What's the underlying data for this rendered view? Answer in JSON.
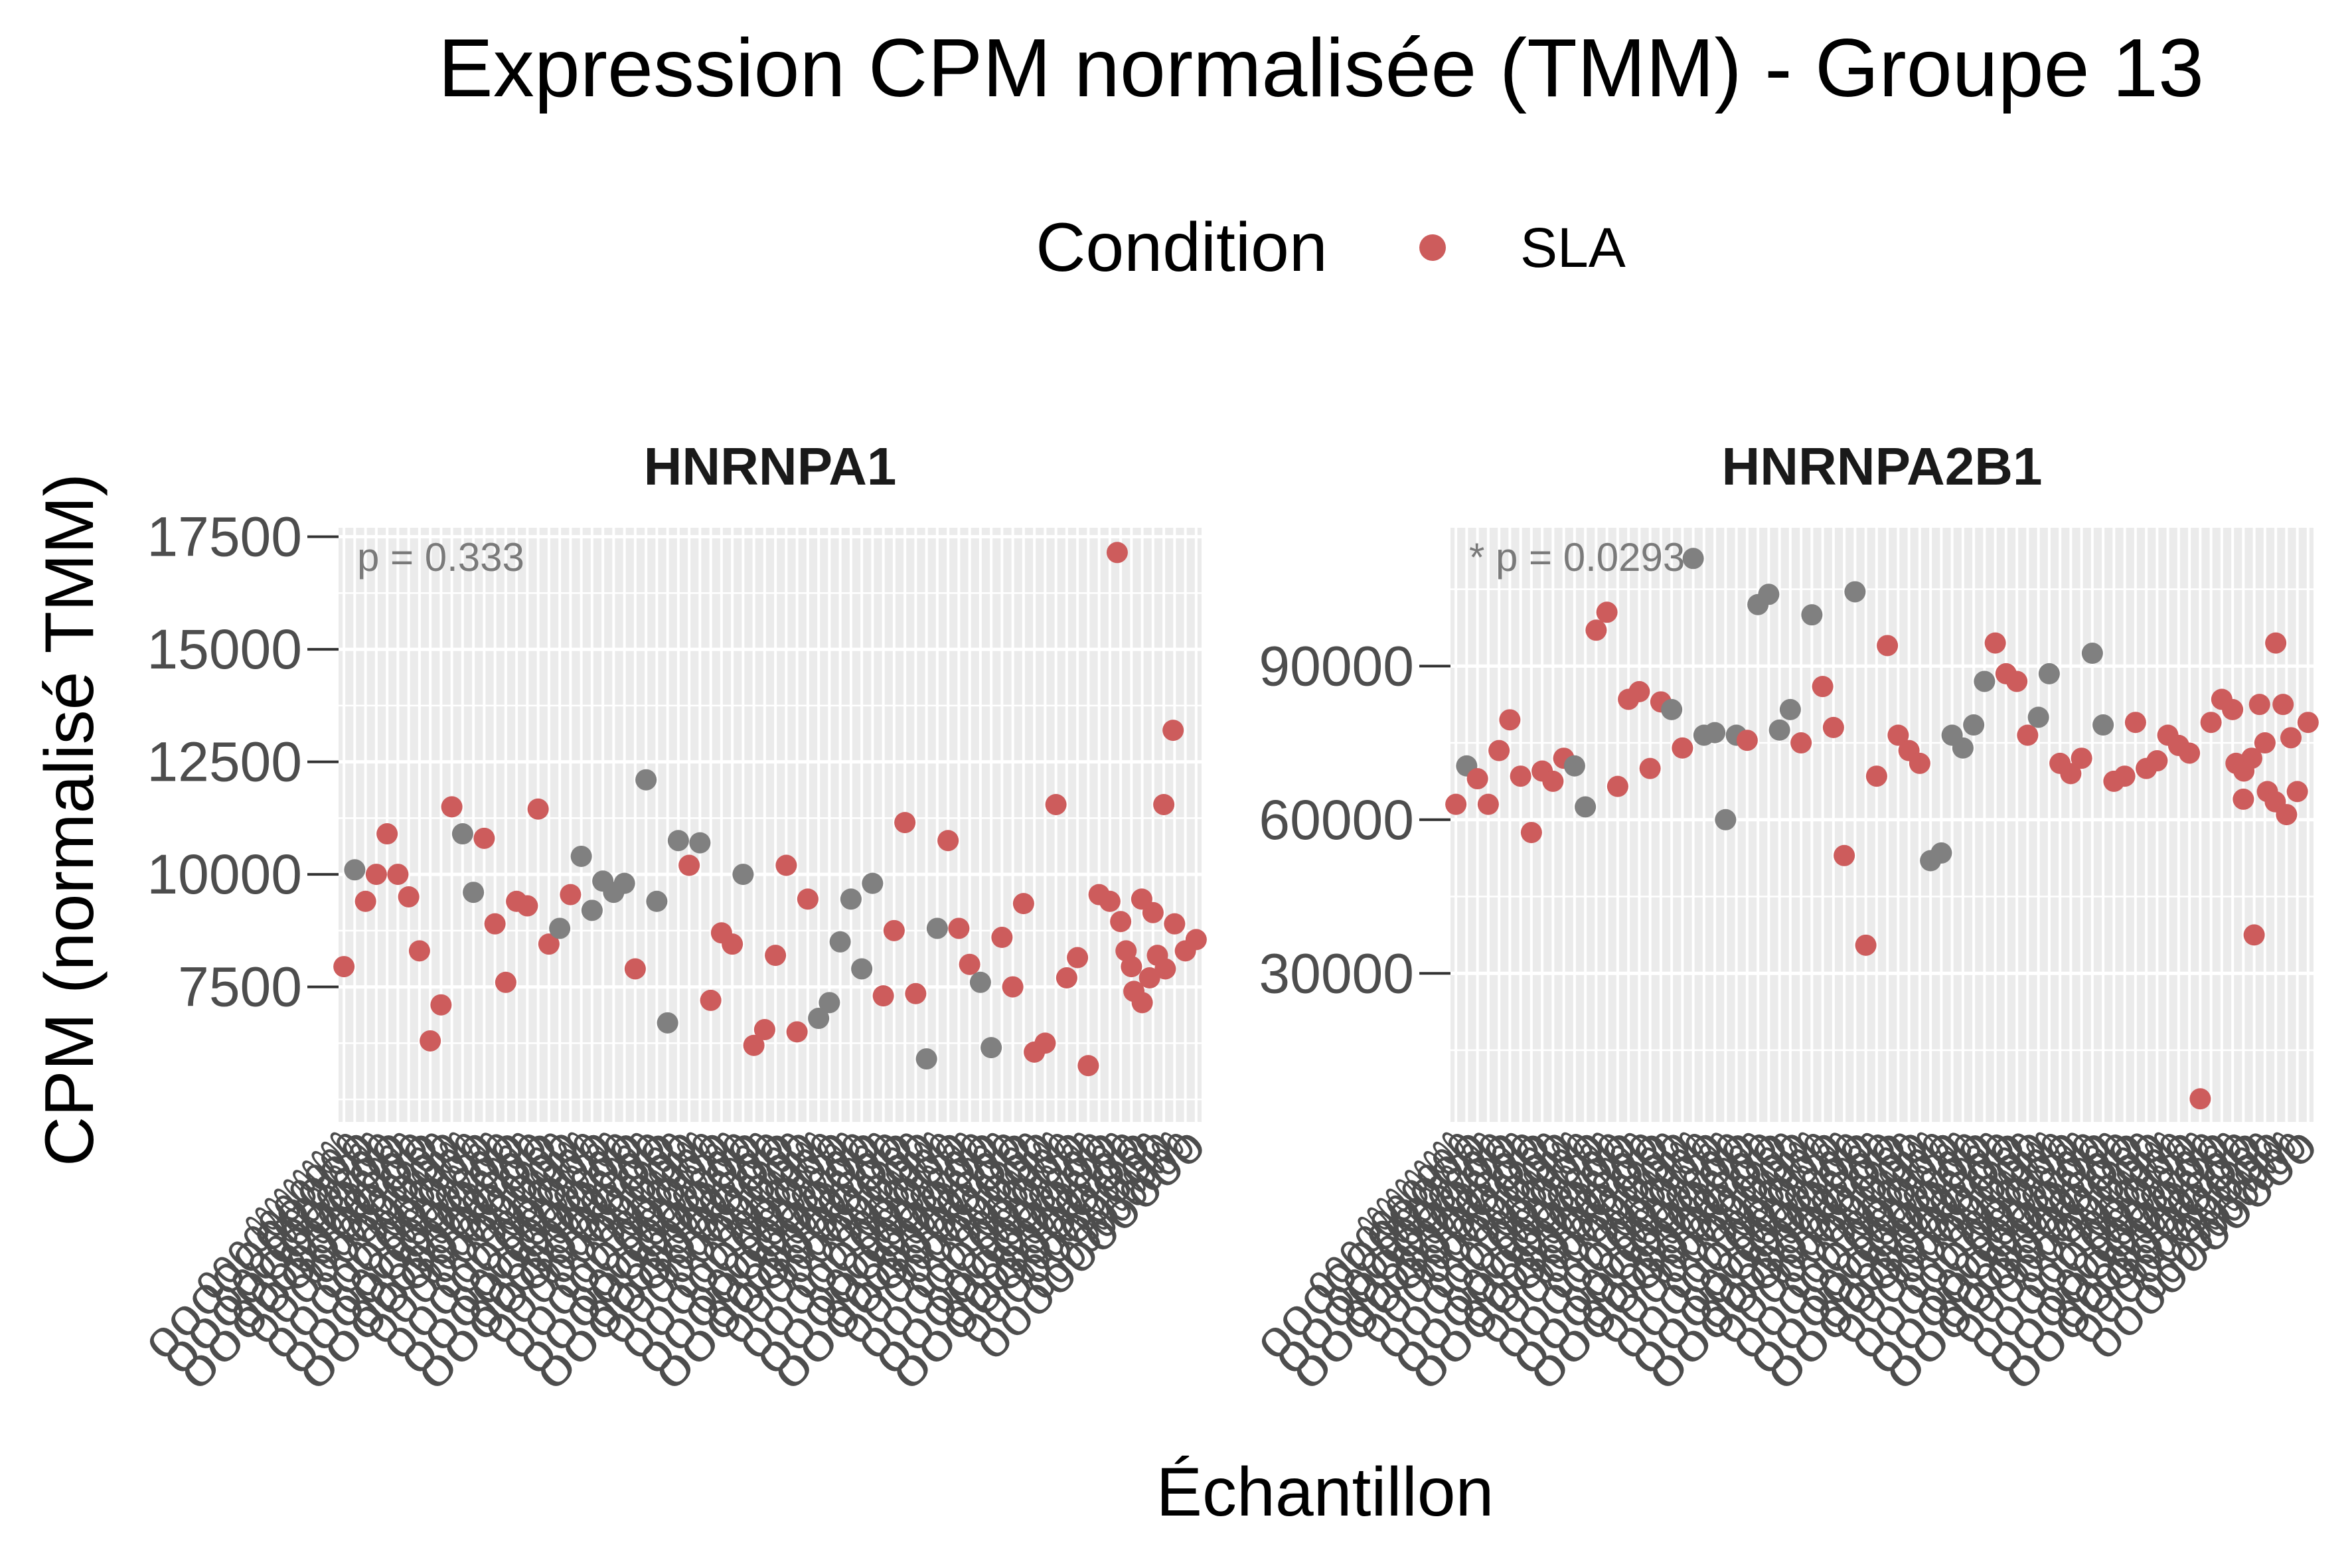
{
  "title": "Expression CPM normalisée (TMM) - Groupe 13",
  "legend": {
    "title": "Condition",
    "items": [
      {
        "label": "SLA",
        "color": "#cd5c5c"
      }
    ]
  },
  "colors": {
    "SLA": "#cd5c5c",
    "unlabeled": "#808080",
    "panel_bg": "#ebebeb",
    "grid": "#ffffff"
  },
  "axes": {
    "xlabel": "Échantillon",
    "ylabel": "CPM (normalisé TMM)"
  },
  "chart_data": [
    {
      "type": "scatter",
      "facet": "HNRNPA1",
      "annotation": "p = 0.333",
      "ylim": [
        4500,
        17700
      ],
      "yticks": [
        7500,
        10000,
        12500,
        15000,
        17500
      ],
      "ytick_labels": [
        "7500",
        "10000",
        "12500",
        "15000",
        "17500"
      ],
      "x_count": 80,
      "grid": true,
      "points": [
        {
          "i": 0,
          "y": 7950,
          "c": "SLA"
        },
        {
          "i": 1,
          "y": 10100,
          "c": "other"
        },
        {
          "i": 2,
          "y": 9400,
          "c": "SLA"
        },
        {
          "i": 3,
          "y": 10000,
          "c": "SLA"
        },
        {
          "i": 4,
          "y": 10900,
          "c": "SLA"
        },
        {
          "i": 5,
          "y": 10000,
          "c": "SLA"
        },
        {
          "i": 6,
          "y": 9500,
          "c": "SLA"
        },
        {
          "i": 7,
          "y": 8300,
          "c": "SLA"
        },
        {
          "i": 8,
          "y": 6300,
          "c": "SLA"
        },
        {
          "i": 9,
          "y": 7100,
          "c": "SLA"
        },
        {
          "i": 10,
          "y": 11500,
          "c": "SLA"
        },
        {
          "i": 11,
          "y": 10900,
          "c": "other"
        },
        {
          "i": 12,
          "y": 9600,
          "c": "other"
        },
        {
          "i": 13,
          "y": 10800,
          "c": "SLA"
        },
        {
          "i": 14,
          "y": 8900,
          "c": "SLA"
        },
        {
          "i": 15,
          "y": 7600,
          "c": "SLA"
        },
        {
          "i": 16,
          "y": 9400,
          "c": "SLA"
        },
        {
          "i": 17,
          "y": 9300,
          "c": "SLA"
        },
        {
          "i": 18,
          "y": 11450,
          "c": "SLA"
        },
        {
          "i": 19,
          "y": 8450,
          "c": "SLA"
        },
        {
          "i": 20,
          "y": 8800,
          "c": "other"
        },
        {
          "i": 21,
          "y": 9550,
          "c": "SLA"
        },
        {
          "i": 22,
          "y": 10400,
          "c": "other"
        },
        {
          "i": 23,
          "y": 9200,
          "c": "other"
        },
        {
          "i": 24,
          "y": 9850,
          "c": "other"
        },
        {
          "i": 25,
          "y": 9600,
          "c": "other"
        },
        {
          "i": 26,
          "y": 9800,
          "c": "other"
        },
        {
          "i": 27,
          "y": 7900,
          "c": "SLA"
        },
        {
          "i": 28,
          "y": 12100,
          "c": "other"
        },
        {
          "i": 29,
          "y": 9400,
          "c": "other"
        },
        {
          "i": 30,
          "y": 6700,
          "c": "other"
        },
        {
          "i": 31,
          "y": 10750,
          "c": "other"
        },
        {
          "i": 32,
          "y": 10200,
          "c": "SLA"
        },
        {
          "i": 33,
          "y": 10700,
          "c": "other"
        },
        {
          "i": 34,
          "y": 7200,
          "c": "SLA"
        },
        {
          "i": 35,
          "y": 8700,
          "c": "SLA"
        },
        {
          "i": 36,
          "y": 8450,
          "c": "SLA"
        },
        {
          "i": 37,
          "y": 10000,
          "c": "other"
        },
        {
          "i": 38,
          "y": 6200,
          "c": "SLA"
        },
        {
          "i": 39,
          "y": 6550,
          "c": "SLA"
        },
        {
          "i": 40,
          "y": 8200,
          "c": "SLA"
        },
        {
          "i": 41,
          "y": 10200,
          "c": "SLA"
        },
        {
          "i": 42,
          "y": 6500,
          "c": "SLA"
        },
        {
          "i": 43,
          "y": 9450,
          "c": "SLA"
        },
        {
          "i": 44,
          "y": 6800,
          "c": "other"
        },
        {
          "i": 45,
          "y": 7150,
          "c": "other"
        },
        {
          "i": 46,
          "y": 8500,
          "c": "other"
        },
        {
          "i": 47,
          "y": 9450,
          "c": "other"
        },
        {
          "i": 48,
          "y": 7900,
          "c": "other"
        },
        {
          "i": 49,
          "y": 9800,
          "c": "other"
        },
        {
          "i": 50,
          "y": 7300,
          "c": "SLA"
        },
        {
          "i": 51,
          "y": 8750,
          "c": "SLA"
        },
        {
          "i": 52,
          "y": 11150,
          "c": "SLA"
        },
        {
          "i": 53,
          "y": 7350,
          "c": "SLA"
        },
        {
          "i": 54,
          "y": 5900,
          "c": "other"
        },
        {
          "i": 55,
          "y": 8800,
          "c": "other"
        },
        {
          "i": 56,
          "y": 10750,
          "c": "SLA"
        },
        {
          "i": 57,
          "y": 8800,
          "c": "SLA"
        },
        {
          "i": 58,
          "y": 8000,
          "c": "SLA"
        },
        {
          "i": 59,
          "y": 7600,
          "c": "other"
        },
        {
          "i": 60,
          "y": 6150,
          "c": "other"
        },
        {
          "i": 61,
          "y": 8600,
          "c": "SLA"
        },
        {
          "i": 62,
          "y": 7500,
          "c": "SLA"
        },
        {
          "i": 63,
          "y": 9350,
          "c": "SLA"
        },
        {
          "i": 64,
          "y": 6050,
          "c": "SLA"
        },
        {
          "i": 65,
          "y": 6250,
          "c": "SLA"
        },
        {
          "i": 66,
          "y": 11550,
          "c": "SLA"
        },
        {
          "i": 67,
          "y": 7700,
          "c": "SLA"
        },
        {
          "i": 68,
          "y": 8150,
          "c": "SLA"
        },
        {
          "i": 69,
          "y": 5750,
          "c": "SLA"
        },
        {
          "i": 70,
          "y": 9550,
          "c": "SLA"
        },
        {
          "i": 71,
          "y": 9400,
          "c": "SLA"
        },
        {
          "i": 72,
          "y": 8950,
          "c": "SLA"
        },
        {
          "i": 73,
          "y": 7950,
          "c": "SLA"
        },
        {
          "i": 74,
          "y": 7150,
          "c": "SLA"
        },
        {
          "i": 75,
          "y": 9150,
          "c": "SLA"
        },
        {
          "i": 76,
          "y": 11550,
          "c": "SLA"
        },
        {
          "i": 77,
          "y": 8900,
          "c": "SLA"
        },
        {
          "i": 78,
          "y": 8300,
          "c": "SLA"
        },
        {
          "i": 79,
          "y": 8550,
          "c": "SLA"
        }
      ],
      "extra_points": [
        {
          "x": 78.9,
          "y": 17150,
          "c": "SLA"
        },
        {
          "x": 79.8,
          "y": 8300,
          "c": "SLA"
        },
        {
          "x": 80.6,
          "y": 7400,
          "c": "SLA"
        },
        {
          "x": 81.4,
          "y": 9450,
          "c": "SLA"
        },
        {
          "x": 82.2,
          "y": 7700,
          "c": "SLA"
        },
        {
          "x": 83.0,
          "y": 8200,
          "c": "SLA"
        },
        {
          "x": 83.8,
          "y": 7900,
          "c": "SLA"
        },
        {
          "x": 84.6,
          "y": 13200,
          "c": "SLA"
        }
      ]
    },
    {
      "type": "scatter",
      "facet": "HNRNPA2B1",
      "annotation": "* p = 0.0293",
      "ylim": [
        1000,
        117000
      ],
      "yticks": [
        30000,
        60000,
        90000
      ],
      "ytick_labels": [
        "30000",
        "60000",
        "90000"
      ],
      "x_count": 80,
      "grid": true,
      "points": [
        {
          "i": 0,
          "y": 63000,
          "c": "SLA"
        },
        {
          "i": 1,
          "y": 70500,
          "c": "other"
        },
        {
          "i": 2,
          "y": 68000,
          "c": "SLA"
        },
        {
          "i": 3,
          "y": 63000,
          "c": "SLA"
        },
        {
          "i": 4,
          "y": 73500,
          "c": "SLA"
        },
        {
          "i": 5,
          "y": 79500,
          "c": "SLA"
        },
        {
          "i": 6,
          "y": 68500,
          "c": "SLA"
        },
        {
          "i": 7,
          "y": 57500,
          "c": "SLA"
        },
        {
          "i": 8,
          "y": 69500,
          "c": "SLA"
        },
        {
          "i": 9,
          "y": 67500,
          "c": "SLA"
        },
        {
          "i": 10,
          "y": 72000,
          "c": "SLA"
        },
        {
          "i": 11,
          "y": 70500,
          "c": "other"
        },
        {
          "i": 12,
          "y": 62500,
          "c": "other"
        },
        {
          "i": 13,
          "y": 97000,
          "c": "SLA"
        },
        {
          "i": 14,
          "y": 100500,
          "c": "SLA"
        },
        {
          "i": 15,
          "y": 66500,
          "c": "SLA"
        },
        {
          "i": 16,
          "y": 83500,
          "c": "SLA"
        },
        {
          "i": 17,
          "y": 85000,
          "c": "SLA"
        },
        {
          "i": 18,
          "y": 70000,
          "c": "SLA"
        },
        {
          "i": 19,
          "y": 83000,
          "c": "SLA"
        },
        {
          "i": 20,
          "y": 81500,
          "c": "other"
        },
        {
          "i": 21,
          "y": 74000,
          "c": "SLA"
        },
        {
          "i": 22,
          "y": 111000,
          "c": "other"
        },
        {
          "i": 23,
          "y": 76500,
          "c": "other"
        },
        {
          "i": 24,
          "y": 77000,
          "c": "other"
        },
        {
          "i": 25,
          "y": 60000,
          "c": "other"
        },
        {
          "i": 26,
          "y": 76500,
          "c": "other"
        },
        {
          "i": 27,
          "y": 75500,
          "c": "SLA"
        },
        {
          "i": 28,
          "y": 102000,
          "c": "other"
        },
        {
          "i": 29,
          "y": 104000,
          "c": "other"
        },
        {
          "i": 30,
          "y": 77500,
          "c": "other"
        },
        {
          "i": 31,
          "y": 81500,
          "c": "other"
        },
        {
          "i": 32,
          "y": 75000,
          "c": "SLA"
        },
        {
          "i": 33,
          "y": 100000,
          "c": "other"
        },
        {
          "i": 34,
          "y": 86000,
          "c": "SLA"
        },
        {
          "i": 35,
          "y": 78000,
          "c": "SLA"
        },
        {
          "i": 36,
          "y": 53000,
          "c": "SLA"
        },
        {
          "i": 37,
          "y": 104500,
          "c": "other"
        },
        {
          "i": 38,
          "y": 35500,
          "c": "SLA"
        },
        {
          "i": 39,
          "y": 68500,
          "c": "SLA"
        },
        {
          "i": 40,
          "y": 94000,
          "c": "SLA"
        },
        {
          "i": 41,
          "y": 76500,
          "c": "SLA"
        },
        {
          "i": 42,
          "y": 73500,
          "c": "SLA"
        },
        {
          "i": 43,
          "y": 71000,
          "c": "SLA"
        },
        {
          "i": 44,
          "y": 52000,
          "c": "other"
        },
        {
          "i": 45,
          "y": 53500,
          "c": "other"
        },
        {
          "i": 46,
          "y": 76500,
          "c": "other"
        },
        {
          "i": 47,
          "y": 74000,
          "c": "other"
        },
        {
          "i": 48,
          "y": 78500,
          "c": "other"
        },
        {
          "i": 49,
          "y": 87000,
          "c": "other"
        },
        {
          "i": 50,
          "y": 94500,
          "c": "SLA"
        },
        {
          "i": 51,
          "y": 88500,
          "c": "SLA"
        },
        {
          "i": 52,
          "y": 87000,
          "c": "SLA"
        },
        {
          "i": 53,
          "y": 76500,
          "c": "SLA"
        },
        {
          "i": 54,
          "y": 80000,
          "c": "other"
        },
        {
          "i": 55,
          "y": 88500,
          "c": "other"
        },
        {
          "i": 56,
          "y": 71000,
          "c": "SLA"
        },
        {
          "i": 57,
          "y": 69000,
          "c": "SLA"
        },
        {
          "i": 58,
          "y": 72000,
          "c": "SLA"
        },
        {
          "i": 59,
          "y": 92500,
          "c": "other"
        },
        {
          "i": 60,
          "y": 78500,
          "c": "other"
        },
        {
          "i": 61,
          "y": 67500,
          "c": "SLA"
        },
        {
          "i": 62,
          "y": 68500,
          "c": "SLA"
        },
        {
          "i": 63,
          "y": 79000,
          "c": "SLA"
        },
        {
          "i": 64,
          "y": 70000,
          "c": "SLA"
        },
        {
          "i": 65,
          "y": 71500,
          "c": "SLA"
        },
        {
          "i": 66,
          "y": 76500,
          "c": "SLA"
        },
        {
          "i": 67,
          "y": 74500,
          "c": "SLA"
        },
        {
          "i": 68,
          "y": 73000,
          "c": "SLA"
        },
        {
          "i": 69,
          "y": 5500,
          "c": "SLA"
        },
        {
          "i": 70,
          "y": 79000,
          "c": "SLA"
        },
        {
          "i": 71,
          "y": 83500,
          "c": "SLA"
        },
        {
          "i": 72,
          "y": 81500,
          "c": "SLA"
        },
        {
          "i": 73,
          "y": 64000,
          "c": "SLA"
        },
        {
          "i": 74,
          "y": 37500,
          "c": "SLA"
        },
        {
          "i": 75,
          "y": 75000,
          "c": "SLA"
        },
        {
          "i": 76,
          "y": 94500,
          "c": "SLA"
        },
        {
          "i": 77,
          "y": 61000,
          "c": "SLA"
        },
        {
          "i": 78,
          "y": 65500,
          "c": "SLA"
        },
        {
          "i": 79,
          "y": 79000,
          "c": "SLA"
        }
      ],
      "extra_points": [
        {
          "x": 79.6,
          "y": 71000,
          "c": "SLA"
        },
        {
          "x": 80.4,
          "y": 69500,
          "c": "SLA"
        },
        {
          "x": 81.2,
          "y": 72000,
          "c": "SLA"
        },
        {
          "x": 82.0,
          "y": 82500,
          "c": "SLA"
        },
        {
          "x": 82.8,
          "y": 65500,
          "c": "SLA"
        },
        {
          "x": 83.6,
          "y": 63500,
          "c": "SLA"
        },
        {
          "x": 84.4,
          "y": 82500,
          "c": "SLA"
        },
        {
          "x": 85.2,
          "y": 76000,
          "c": "SLA"
        }
      ]
    }
  ]
}
